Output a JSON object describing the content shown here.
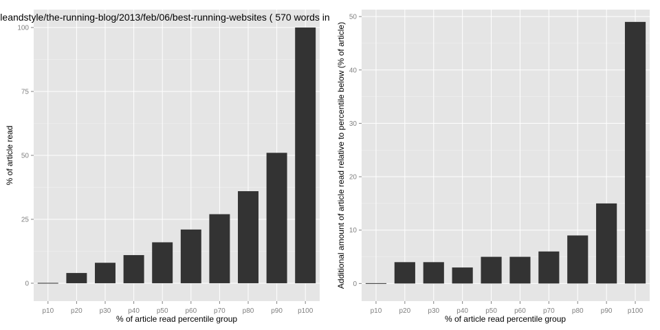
{
  "chart_data": [
    {
      "type": "bar",
      "title": "leandstyle/the-running-blog/2013/feb/06/best-running-websites ( 570 words in",
      "xlabel": "% of article read percentile group",
      "ylabel": "% of article read",
      "categories": [
        "p10",
        "p20",
        "p30",
        "p40",
        "p50",
        "p60",
        "p70",
        "p80",
        "p90",
        "p100"
      ],
      "values": [
        0,
        4,
        8,
        11,
        16,
        21,
        27,
        36,
        51,
        100
      ],
      "ylim": [
        -7,
        107
      ],
      "yticks": [
        "0",
        "25",
        "50",
        "75",
        "100"
      ],
      "grid": true,
      "bar_color": "#333333",
      "panel_color": "#e5e5e5"
    },
    {
      "type": "bar",
      "title": "",
      "xlabel": "% of article read percentile group",
      "ylabel": "Additional amount of article read relative to percentile below (% of article)",
      "categories": [
        "p10",
        "p20",
        "p30",
        "p40",
        "p50",
        "p60",
        "p70",
        "p80",
        "p90",
        "p100"
      ],
      "values": [
        0,
        4,
        4,
        3,
        5,
        5,
        6,
        9,
        15,
        49
      ],
      "ylim": [
        -3.3,
        51.3
      ],
      "yticks": [
        "0",
        "10",
        "20",
        "30",
        "40",
        "50"
      ],
      "grid": true,
      "bar_color": "#333333",
      "panel_color": "#e5e5e5"
    }
  ]
}
